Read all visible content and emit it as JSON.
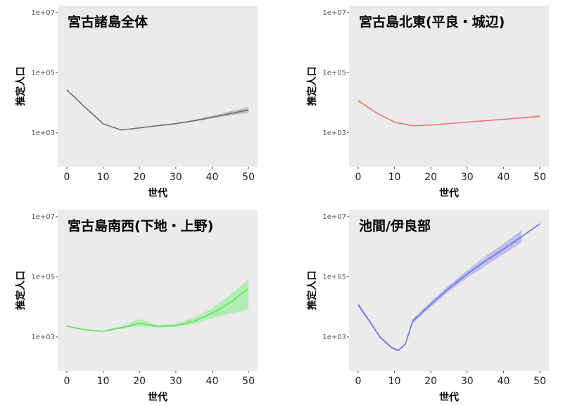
{
  "chart_data": [
    {
      "type": "line",
      "title": "宮古諸島全体",
      "xlabel": "世代",
      "ylabel": "推定人口",
      "log_y": true,
      "grid": false,
      "x": [
        0,
        5,
        10,
        15,
        20,
        25,
        30,
        35,
        40,
        45,
        50
      ],
      "series": [
        {
          "name": "宮古諸島全体",
          "color": "#6e6e6e",
          "band_color": "#b4b4b4",
          "values": [
            27000,
            7200,
            2000,
            1250,
            1470,
            1730,
            2040,
            2540,
            3340,
            4400,
            5800
          ],
          "lower": [
            27000,
            7200,
            2000,
            1250,
            1400,
            1680,
            1960,
            2380,
            3000,
            3800,
            4600
          ],
          "upper": [
            27000,
            7200,
            2000,
            1250,
            1550,
            1790,
            2120,
            2700,
            3700,
            5200,
            7200
          ]
        }
      ],
      "xlim": [
        -2.5,
        52.5
      ],
      "xticks": [
        0,
        10,
        20,
        30,
        40,
        50
      ],
      "ylim": [
        75,
        17000000
      ],
      "yticks": [
        {
          "value": 1000,
          "label": "1e+03"
        },
        {
          "value": 100000,
          "label": "1e+05"
        },
        {
          "value": 10000000,
          "label": "1e+07"
        }
      ]
    },
    {
      "type": "line",
      "title": "宮古島北東(平良・城辺)",
      "xlabel": "世代",
      "ylabel": "推定人口",
      "log_y": true,
      "grid": false,
      "x": [
        0,
        5,
        10,
        15,
        20,
        25,
        30,
        35,
        40,
        45,
        50
      ],
      "series": [
        {
          "name": "宮古島北東(平良・城辺)",
          "color": "#f07a72",
          "band_color": "#f4a8a4",
          "values": [
            11800,
            4650,
            2280,
            1730,
            1830,
            2040,
            2280,
            2540,
            2830,
            3160,
            3530
          ],
          "lower": [
            11000,
            4400,
            2200,
            1680,
            1780,
            1990,
            2220,
            2470,
            2740,
            3050,
            3350
          ],
          "upper": [
            12700,
            4900,
            2360,
            1780,
            1880,
            2090,
            2340,
            2610,
            2930,
            3300,
            3900
          ]
        }
      ],
      "xlim": [
        -2.5,
        52.5
      ],
      "xticks": [
        0,
        10,
        20,
        30,
        40,
        50
      ],
      "ylim": [
        75,
        17000000
      ],
      "yticks": [
        {
          "value": 1000,
          "label": "1e+03"
        },
        {
          "value": 100000,
          "label": "1e+05"
        },
        {
          "value": 10000000,
          "label": "1e+07"
        }
      ]
    },
    {
      "type": "line",
      "title": "宮古島南西(下地・上野)",
      "xlabel": "世代",
      "ylabel": "推定人口",
      "log_y": true,
      "grid": false,
      "x": [
        0,
        5,
        10,
        15,
        20,
        25,
        30,
        35,
        40,
        45,
        50
      ],
      "series": [
        {
          "name": "宮古島南西(下地・上野)",
          "color": "#5fe35f",
          "band_color": "#a6eda6",
          "values": [
            2270,
            1730,
            1550,
            2040,
            2830,
            2270,
            2400,
            3340,
            6100,
            13900,
            41700
          ],
          "lower": [
            2150,
            1650,
            1480,
            1850,
            2270,
            2050,
            2150,
            2700,
            4160,
            6000,
            8000
          ],
          "upper": [
            2400,
            1810,
            1620,
            2300,
            3950,
            2500,
            2800,
            4300,
            8950,
            26000,
            80000
          ]
        }
      ],
      "xlim": [
        -2.5,
        52.5
      ],
      "xticks": [
        0,
        10,
        20,
        30,
        40,
        50
      ],
      "ylim": [
        75,
        17000000
      ],
      "yticks": [
        {
          "value": 1000,
          "label": "1e+03"
        },
        {
          "value": 100000,
          "label": "1e+05"
        },
        {
          "value": 10000000,
          "label": "1e+07"
        }
      ]
    },
    {
      "type": "line",
      "title": "池間/伊良部",
      "xlabel": "世代",
      "ylabel": "推定人口",
      "log_y": true,
      "grid": false,
      "x": [
        0,
        3,
        6,
        9,
        11,
        13,
        15,
        20,
        25,
        30,
        35,
        40,
        45,
        50
      ],
      "series": [
        {
          "name": "池間/伊良部",
          "color": "#7070e6",
          "band_color": "#b2b2f0",
          "values": [
            11800,
            3530,
            1000,
            465,
            354,
            580,
            3340,
            12200,
            41700,
            124000,
            333000,
            845000,
            2150000,
            5800000
          ],
          "lower": [
            10500,
            3200,
            920,
            430,
            330,
            540,
            2800,
            10000,
            33000,
            92000,
            230000,
            560000,
            1400000,
            null
          ],
          "upper": [
            13500,
            3900,
            1090,
            500,
            380,
            630,
            4000,
            15000,
            52000,
            165000,
            480000,
            1250000,
            3500000,
            null
          ]
        }
      ],
      "xlim": [
        -2.5,
        52.5
      ],
      "xticks": [
        0,
        10,
        20,
        30,
        40,
        50
      ],
      "ylim": [
        75,
        17000000
      ],
      "yticks": [
        {
          "value": 1000,
          "label": "1e+03"
        },
        {
          "value": 100000,
          "label": "1e+05"
        },
        {
          "value": 10000000,
          "label": "1e+07"
        }
      ]
    }
  ]
}
